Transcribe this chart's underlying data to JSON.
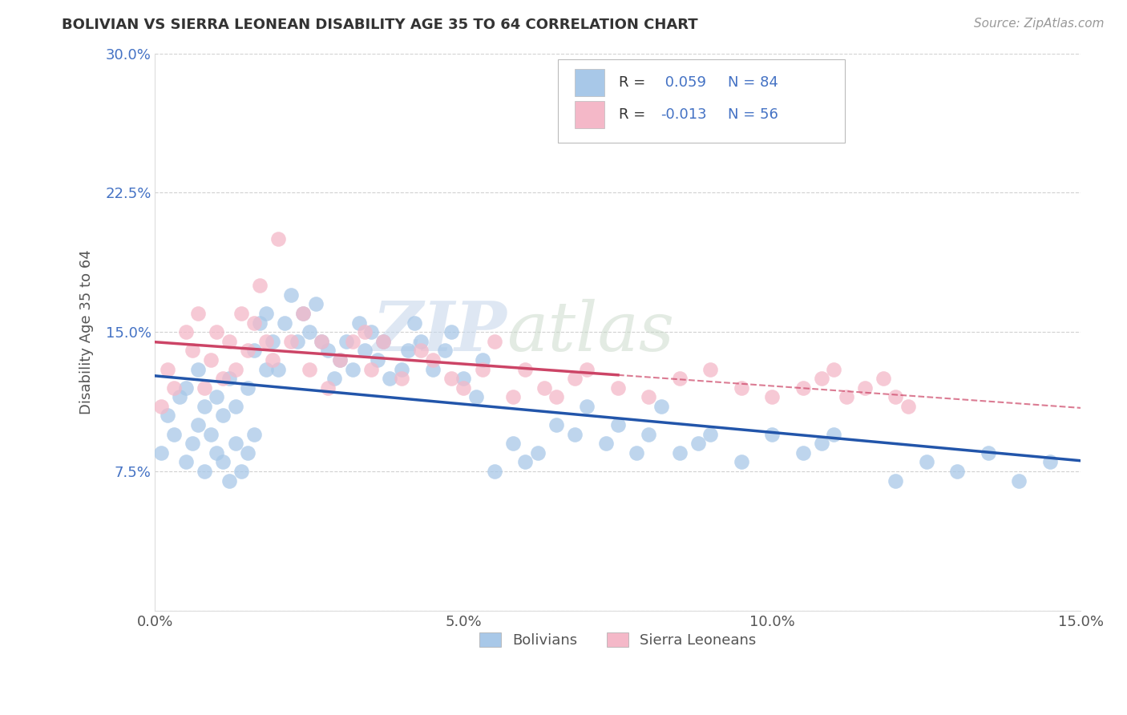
{
  "title": "BOLIVIAN VS SIERRA LEONEAN DISABILITY AGE 35 TO 64 CORRELATION CHART",
  "source": "Source: ZipAtlas.com",
  "ylabel_label": "Disability Age 35 to 64",
  "xlim": [
    0.0,
    0.15
  ],
  "ylim": [
    0.0,
    0.3
  ],
  "xticks": [
    0.0,
    0.05,
    0.1,
    0.15
  ],
  "xtick_labels": [
    "0.0%",
    "5.0%",
    "10.0%",
    "15.0%"
  ],
  "yticks": [
    0.0,
    0.075,
    0.15,
    0.225,
    0.3
  ],
  "ytick_labels": [
    "",
    "7.5%",
    "15.0%",
    "22.5%",
    "30.0%"
  ],
  "bolivian_R": 0.059,
  "bolivian_N": 84,
  "sierra_R": -0.013,
  "sierra_N": 56,
  "blue_scatter_color": "#a8c8e8",
  "pink_scatter_color": "#f4b8c8",
  "blue_line_color": "#2255aa",
  "pink_line_color": "#cc4466",
  "watermark_zip": "ZIP",
  "watermark_atlas": "atlas",
  "legend_label_blue": "Bolivians",
  "legend_label_pink": "Sierra Leoneans",
  "bolivian_x": [
    0.001,
    0.002,
    0.003,
    0.004,
    0.005,
    0.005,
    0.006,
    0.007,
    0.007,
    0.008,
    0.008,
    0.009,
    0.01,
    0.01,
    0.011,
    0.011,
    0.012,
    0.012,
    0.013,
    0.013,
    0.014,
    0.015,
    0.015,
    0.016,
    0.016,
    0.017,
    0.018,
    0.018,
    0.019,
    0.02,
    0.021,
    0.022,
    0.023,
    0.024,
    0.025,
    0.026,
    0.027,
    0.028,
    0.029,
    0.03,
    0.031,
    0.032,
    0.033,
    0.034,
    0.035,
    0.036,
    0.037,
    0.038,
    0.04,
    0.041,
    0.042,
    0.043,
    0.045,
    0.047,
    0.048,
    0.05,
    0.052,
    0.053,
    0.055,
    0.058,
    0.06,
    0.062,
    0.065,
    0.068,
    0.07,
    0.073,
    0.075,
    0.078,
    0.08,
    0.082,
    0.085,
    0.088,
    0.09,
    0.095,
    0.1,
    0.105,
    0.108,
    0.11,
    0.12,
    0.125,
    0.13,
    0.135,
    0.14,
    0.145
  ],
  "bolivian_y": [
    0.085,
    0.105,
    0.095,
    0.115,
    0.08,
    0.12,
    0.09,
    0.1,
    0.13,
    0.075,
    0.11,
    0.095,
    0.085,
    0.115,
    0.08,
    0.105,
    0.07,
    0.125,
    0.09,
    0.11,
    0.075,
    0.085,
    0.12,
    0.095,
    0.14,
    0.155,
    0.13,
    0.16,
    0.145,
    0.13,
    0.155,
    0.17,
    0.145,
    0.16,
    0.15,
    0.165,
    0.145,
    0.14,
    0.125,
    0.135,
    0.145,
    0.13,
    0.155,
    0.14,
    0.15,
    0.135,
    0.145,
    0.125,
    0.13,
    0.14,
    0.155,
    0.145,
    0.13,
    0.14,
    0.15,
    0.125,
    0.115,
    0.135,
    0.075,
    0.09,
    0.08,
    0.085,
    0.1,
    0.095,
    0.11,
    0.09,
    0.1,
    0.085,
    0.095,
    0.11,
    0.085,
    0.09,
    0.095,
    0.08,
    0.095,
    0.085,
    0.09,
    0.095,
    0.07,
    0.08,
    0.075,
    0.085,
    0.07,
    0.08
  ],
  "sierra_x": [
    0.001,
    0.002,
    0.003,
    0.005,
    0.006,
    0.007,
    0.008,
    0.009,
    0.01,
    0.011,
    0.012,
    0.013,
    0.014,
    0.015,
    0.016,
    0.017,
    0.018,
    0.019,
    0.02,
    0.022,
    0.024,
    0.025,
    0.027,
    0.028,
    0.03,
    0.032,
    0.034,
    0.035,
    0.037,
    0.04,
    0.043,
    0.045,
    0.048,
    0.05,
    0.053,
    0.055,
    0.058,
    0.06,
    0.063,
    0.065,
    0.068,
    0.07,
    0.075,
    0.08,
    0.085,
    0.09,
    0.095,
    0.1,
    0.105,
    0.108,
    0.11,
    0.112,
    0.115,
    0.118,
    0.12,
    0.122
  ],
  "sierra_y": [
    0.11,
    0.13,
    0.12,
    0.15,
    0.14,
    0.16,
    0.12,
    0.135,
    0.15,
    0.125,
    0.145,
    0.13,
    0.16,
    0.14,
    0.155,
    0.175,
    0.145,
    0.135,
    0.2,
    0.145,
    0.16,
    0.13,
    0.145,
    0.12,
    0.135,
    0.145,
    0.15,
    0.13,
    0.145,
    0.125,
    0.14,
    0.135,
    0.125,
    0.12,
    0.13,
    0.145,
    0.115,
    0.13,
    0.12,
    0.115,
    0.125,
    0.13,
    0.12,
    0.115,
    0.125,
    0.13,
    0.12,
    0.115,
    0.12,
    0.125,
    0.13,
    0.115,
    0.12,
    0.125,
    0.115,
    0.11
  ]
}
